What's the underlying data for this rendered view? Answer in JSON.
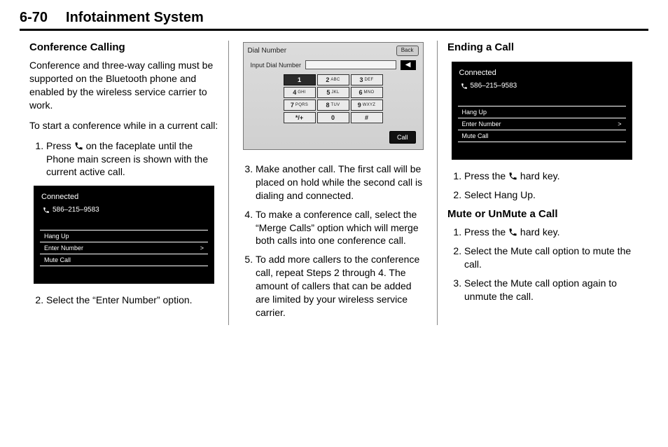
{
  "header": {
    "page_num": "6-70",
    "title": "Infotainment System"
  },
  "col1": {
    "heading": "Conference Calling",
    "para1": "Conference and three-way calling must be supported on the Bluetooth phone and enabled by the wireless service carrier to work.",
    "para2": "To start a conference while in a current call:",
    "step1_a": "Press ",
    "step1_b": " on the faceplate until the Phone main screen is shown with the current active call.",
    "step2": "Select the “Enter Number” option."
  },
  "col2": {
    "step3": "Make another call. The first call will be placed on hold while the second call is dialing and connected.",
    "step4": "To make a conference call, select the “Merge Calls” option which will merge both calls into one conference call.",
    "step5": "To add more callers to the conference call, repeat Steps 2 through 4. The amount of callers that can be added are limited by your wireless service carrier."
  },
  "col3": {
    "heading_end": "Ending a Call",
    "step1_a": "Press the ",
    "step1_b": " hard key.",
    "step2": "Select Hang Up.",
    "heading_mute": "Mute or UnMute a Call",
    "mstep1_a": "Press the ",
    "mstep1_b": " hard key.",
    "mstep2": "Select the Mute call option to mute the call.",
    "mstep3": "Select the Mute call option again to unmute the call."
  },
  "shot_dark": {
    "title": "Connected",
    "number": "586–215–9583",
    "rows": [
      "Hang Up",
      "Enter Number",
      "Mute Call"
    ],
    "bg": "#000000",
    "fg": "#ffffff"
  },
  "shot_light": {
    "title": "Dial Number",
    "back": "Back",
    "input_label": "Input Dial Number",
    "del_label": "◀",
    "call": "Call",
    "bg": "#d6d6d6",
    "keys": [
      {
        "n": "1",
        "l": "",
        "dark": true
      },
      {
        "n": "2",
        "l": "ABC"
      },
      {
        "n": "3",
        "l": "DEF"
      },
      {
        "n": "4",
        "l": "GHI"
      },
      {
        "n": "5",
        "l": "JKL"
      },
      {
        "n": "6",
        "l": "MNO"
      },
      {
        "n": "7",
        "l": "PQRS"
      },
      {
        "n": "8",
        "l": "TUV"
      },
      {
        "n": "9",
        "l": "WXYZ"
      },
      {
        "n": "*/+",
        "l": ""
      },
      {
        "n": "0",
        "l": ""
      },
      {
        "n": "#",
        "l": ""
      }
    ]
  }
}
